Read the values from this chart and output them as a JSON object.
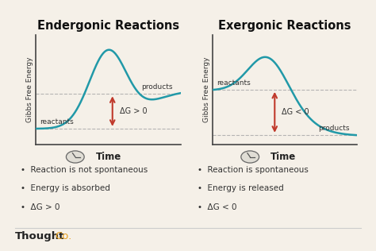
{
  "bg_color": "#f5f0e8",
  "title_left": "Endergonic Reactions",
  "title_right": "Exergonic Reactions",
  "ylabel": "Gibbs Free Energy",
  "xlabel": "Time",
  "curve_color": "#2199A8",
  "arrow_color": "#C0392B",
  "dashed_color": "#aaaaaa",
  "bullet_left": [
    "Reaction is not spontaneous",
    "Energy is absorbed",
    "ΔG > 0"
  ],
  "bullet_right": [
    "Reaction is spontaneous",
    "Energy is released",
    "ΔG < 0"
  ],
  "delta_g_left": "ΔG > 0",
  "delta_g_right": "ΔG < 0",
  "reactants_label_left": "reactants",
  "products_label_left": "products",
  "reactants_label_right": "reactants",
  "products_label_right": "products",
  "thoughtco_text": "Thought",
  "thoughtco_co": "Co.",
  "title_fontsize": 10.5,
  "label_fontsize": 6.5,
  "annotation_fontsize": 7,
  "bullet_fontsize": 7.5,
  "thoughtco_fontsize": 9.5,
  "axis_label_fontsize": 6.5
}
